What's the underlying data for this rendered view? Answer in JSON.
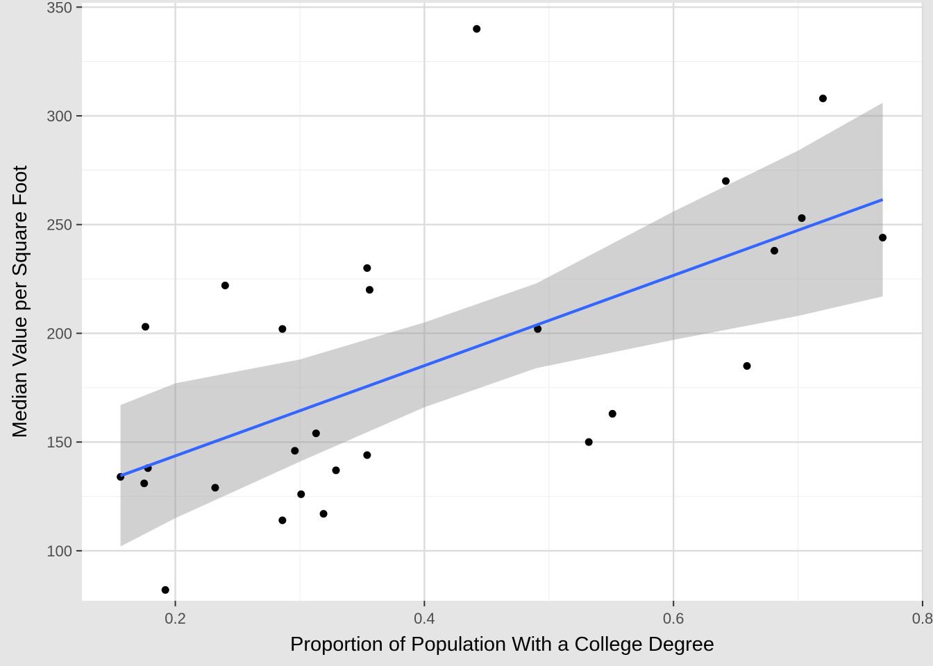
{
  "chart_data": {
    "type": "scatter",
    "xlabel": "Proportion of Population With a College Degree",
    "ylabel": "Median Value per Square Foot",
    "xlim": [
      0.125,
      0.8
    ],
    "ylim": [
      77,
      352
    ],
    "x_ticks": [
      0.2,
      0.4,
      0.6,
      0.8
    ],
    "x_tick_labels": [
      "0.2",
      "0.4",
      "0.6",
      "0.8"
    ],
    "y_ticks": [
      100,
      150,
      200,
      250,
      300,
      350
    ],
    "y_tick_labels": [
      "100",
      "150",
      "200",
      "250",
      "300",
      "350"
    ],
    "grid": true,
    "points": [
      {
        "x": 0.156,
        "y": 134
      },
      {
        "x": 0.175,
        "y": 131
      },
      {
        "x": 0.176,
        "y": 203
      },
      {
        "x": 0.178,
        "y": 138
      },
      {
        "x": 0.192,
        "y": 82
      },
      {
        "x": 0.232,
        "y": 129
      },
      {
        "x": 0.24,
        "y": 222
      },
      {
        "x": 0.286,
        "y": 202
      },
      {
        "x": 0.286,
        "y": 114
      },
      {
        "x": 0.296,
        "y": 146
      },
      {
        "x": 0.301,
        "y": 126
      },
      {
        "x": 0.313,
        "y": 154
      },
      {
        "x": 0.319,
        "y": 117
      },
      {
        "x": 0.329,
        "y": 137
      },
      {
        "x": 0.354,
        "y": 230
      },
      {
        "x": 0.354,
        "y": 144
      },
      {
        "x": 0.356,
        "y": 220
      },
      {
        "x": 0.442,
        "y": 340
      },
      {
        "x": 0.491,
        "y": 202
      },
      {
        "x": 0.532,
        "y": 150
      },
      {
        "x": 0.551,
        "y": 163
      },
      {
        "x": 0.642,
        "y": 270
      },
      {
        "x": 0.659,
        "y": 185
      },
      {
        "x": 0.681,
        "y": 238
      },
      {
        "x": 0.703,
        "y": 253
      },
      {
        "x": 0.72,
        "y": 308
      },
      {
        "x": 0.768,
        "y": 244
      }
    ],
    "trend_line": {
      "color": "#3366ff",
      "x": [
        0.156,
        0.768
      ],
      "y": [
        134.5,
        261.5
      ]
    },
    "confidence_band": {
      "color": "#999999",
      "x": [
        0.156,
        0.2,
        0.3,
        0.4,
        0.49,
        0.6,
        0.7,
        0.768
      ],
      "lower": [
        102,
        115,
        141,
        166,
        184,
        197,
        208,
        217
      ],
      "upper": [
        167,
        177,
        188,
        205,
        223,
        256,
        284,
        306
      ]
    }
  }
}
